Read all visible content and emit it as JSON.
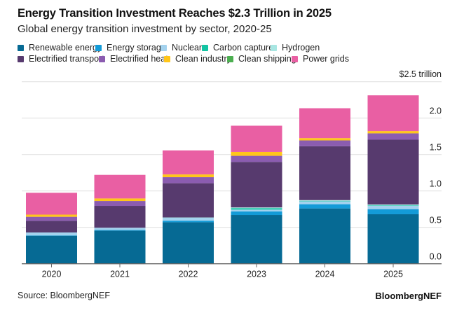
{
  "chart_data": {
    "type": "bar",
    "stacked": true,
    "title": "Energy Transition Investment Reaches $2.3 Trillion in 2025",
    "subtitle": "Global energy transition investment by sector, 2020-25",
    "ylabel": "$2.5 trillion",
    "ylim": [
      0,
      2.5
    ],
    "yticks": [
      "0.0",
      "0.5",
      "1.0",
      "1.5",
      "2.0"
    ],
    "grid": true,
    "legend_position": "top",
    "categories": [
      "2020",
      "2021",
      "2022",
      "2023",
      "2024",
      "2025"
    ],
    "series": [
      {
        "name": "Renewable energy",
        "color": "#066a94",
        "values": [
          0.385,
          0.455,
          0.57,
          0.67,
          0.76,
          0.68
        ]
      },
      {
        "name": "Energy storage",
        "color": "#139bd8",
        "values": [
          0.005,
          0.01,
          0.022,
          0.048,
          0.058,
          0.07
        ]
      },
      {
        "name": "Nuclear",
        "color": "#a3d2ee",
        "values": [
          0.04,
          0.03,
          0.042,
          0.026,
          0.04,
          0.048
        ]
      },
      {
        "name": "Carbon capture",
        "color": "#13c4a3",
        "values": [
          0.0,
          0.0,
          0.0,
          0.02,
          0.003,
          0.003
        ]
      },
      {
        "name": "Hydrogen",
        "color": "#a8e6e2",
        "values": [
          0.0,
          0.0,
          0.002,
          0.01,
          0.013,
          0.013
        ]
      },
      {
        "name": "Electrified transport",
        "color": "#573a6e",
        "values": [
          0.16,
          0.3,
          0.47,
          0.625,
          0.74,
          0.89
        ]
      },
      {
        "name": "Electrified heat",
        "color": "#8b5cb0",
        "values": [
          0.055,
          0.067,
          0.083,
          0.083,
          0.08,
          0.087
        ]
      },
      {
        "name": "Clean industry",
        "color": "#ffc61a",
        "values": [
          0.03,
          0.035,
          0.038,
          0.054,
          0.032,
          0.032
        ]
      },
      {
        "name": "Clean shipping",
        "color": "#4caf50",
        "values": [
          0.0,
          0.0,
          0.0,
          0.0,
          0.0,
          0.0
        ]
      },
      {
        "name": "Power grids",
        "color": "#e95fa3",
        "values": [
          0.3,
          0.324,
          0.33,
          0.36,
          0.41,
          0.49
        ]
      }
    ]
  },
  "footer": {
    "source": "Source: BloombergNEF",
    "brand": "BloombergNEF"
  }
}
